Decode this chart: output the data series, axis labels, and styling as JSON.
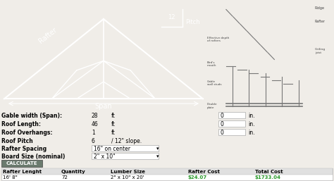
{
  "bg_color": "#f0ede8",
  "left_panel_color": "#b5722a",
  "fields": [
    {
      "label": "Gable width (Span):",
      "value": "28",
      "unit": "ft",
      "extra_val": "0",
      "extra_unit": "in."
    },
    {
      "label": "Roof Length:",
      "value": "46",
      "unit": "ft",
      "extra_val": "0",
      "extra_unit": "in."
    },
    {
      "label": "Roof Overhangs:",
      "value": "1",
      "unit": "ft",
      "extra_val": "0",
      "extra_unit": "in."
    },
    {
      "label": "Roof Pitch",
      "value": "6",
      "unit": "/ 12\" slope.",
      "extra_val": null,
      "extra_unit": null
    },
    {
      "label": "Rafter Spacing",
      "value": "16\" on center",
      "unit": "",
      "extra_val": null,
      "extra_unit": null
    },
    {
      "label": "Board Size (nominal)",
      "value": "2\" x 10\"",
      "unit": "",
      "extra_val": null,
      "extra_unit": null
    }
  ],
  "calc_btn_color": "#6b7b6e",
  "calc_btn_text": "CALCULATE",
  "table_headers": [
    "Rafter Lenght",
    "Quantity",
    "Lumber Size",
    "Rafter Cost",
    "Total Cost"
  ],
  "table_row": [
    "16' 8\"",
    "72",
    "2\" x 10\" x 20'",
    "$24.07",
    "$1733.04"
  ],
  "table_cost_color": "#2a9a2a",
  "rafter_label": "Rafter",
  "span_label": "Span",
  "pitch_label": "Pitch",
  "pitch_num": "12"
}
